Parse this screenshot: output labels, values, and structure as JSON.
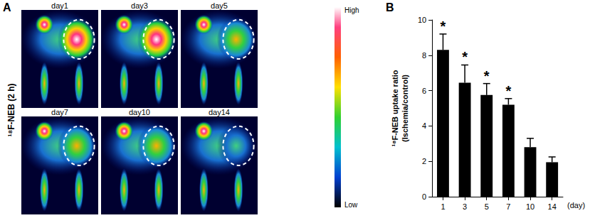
{
  "panel_a": {
    "label": "A",
    "row_label": "¹⁸F-NEB (2 h)",
    "images": [
      "day1",
      "day3",
      "day5",
      "day7",
      "day10",
      "day14"
    ],
    "colorbar": {
      "high": "High",
      "low": "Low"
    }
  },
  "chart_data": {
    "type": "bar",
    "panel_label": "B",
    "ylabel": "¹⁸F-NEB uptake ratio\n(Ischemia/control)",
    "xlabel": "(day)",
    "categories": [
      "1",
      "3",
      "5",
      "7",
      "10",
      "14"
    ],
    "values": [
      8.3,
      6.45,
      5.75,
      5.2,
      2.8,
      1.95
    ],
    "errors": [
      0.9,
      1.0,
      0.65,
      0.35,
      0.5,
      0.3
    ],
    "significance": [
      "*",
      "*",
      "*",
      "*",
      null,
      null
    ],
    "color": "#000000",
    "ylim": [
      0,
      10
    ],
    "yticks": [
      0,
      2,
      4,
      6,
      8,
      10
    ],
    "grid": false
  }
}
